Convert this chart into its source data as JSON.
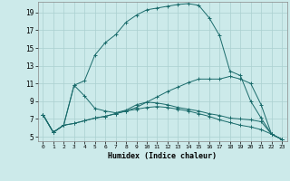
{
  "xlabel": "Humidex (Indice chaleur)",
  "background_color": "#cceaea",
  "grid_color": "#aad0d0",
  "line_color": "#1a6b6b",
  "xlim": [
    -0.5,
    23.5
  ],
  "ylim": [
    4.5,
    20.2
  ],
  "xticks": [
    0,
    1,
    2,
    3,
    4,
    5,
    6,
    7,
    8,
    9,
    10,
    11,
    12,
    13,
    14,
    15,
    16,
    17,
    18,
    19,
    20,
    21,
    22,
    23
  ],
  "yticks": [
    5,
    7,
    9,
    11,
    13,
    15,
    17,
    19
  ],
  "curves": [
    [
      7.5,
      5.5,
      6.3,
      10.8,
      11.3,
      14.2,
      15.6,
      16.5,
      17.9,
      18.7,
      19.3,
      19.5,
      19.7,
      19.9,
      20.0,
      19.8,
      18.4,
      16.4,
      12.4,
      11.9,
      9.0,
      7.1,
      5.3,
      4.7
    ],
    [
      7.5,
      5.5,
      6.3,
      10.8,
      9.6,
      8.2,
      7.9,
      7.7,
      8.0,
      8.6,
      8.9,
      8.8,
      8.6,
      8.3,
      8.1,
      7.9,
      7.6,
      7.4,
      7.1,
      7.0,
      6.9,
      6.7,
      5.3,
      4.7
    ],
    [
      7.5,
      5.5,
      6.3,
      6.5,
      6.8,
      7.1,
      7.3,
      7.6,
      7.9,
      8.3,
      8.9,
      9.5,
      10.1,
      10.6,
      11.1,
      11.5,
      11.5,
      11.5,
      11.8,
      11.5,
      11.0,
      8.6,
      5.3,
      4.7
    ],
    [
      7.5,
      5.5,
      6.3,
      6.5,
      6.8,
      7.1,
      7.3,
      7.6,
      7.9,
      8.1,
      8.3,
      8.4,
      8.3,
      8.1,
      7.9,
      7.6,
      7.3,
      6.9,
      6.6,
      6.3,
      6.1,
      5.8,
      5.3,
      4.7
    ]
  ]
}
